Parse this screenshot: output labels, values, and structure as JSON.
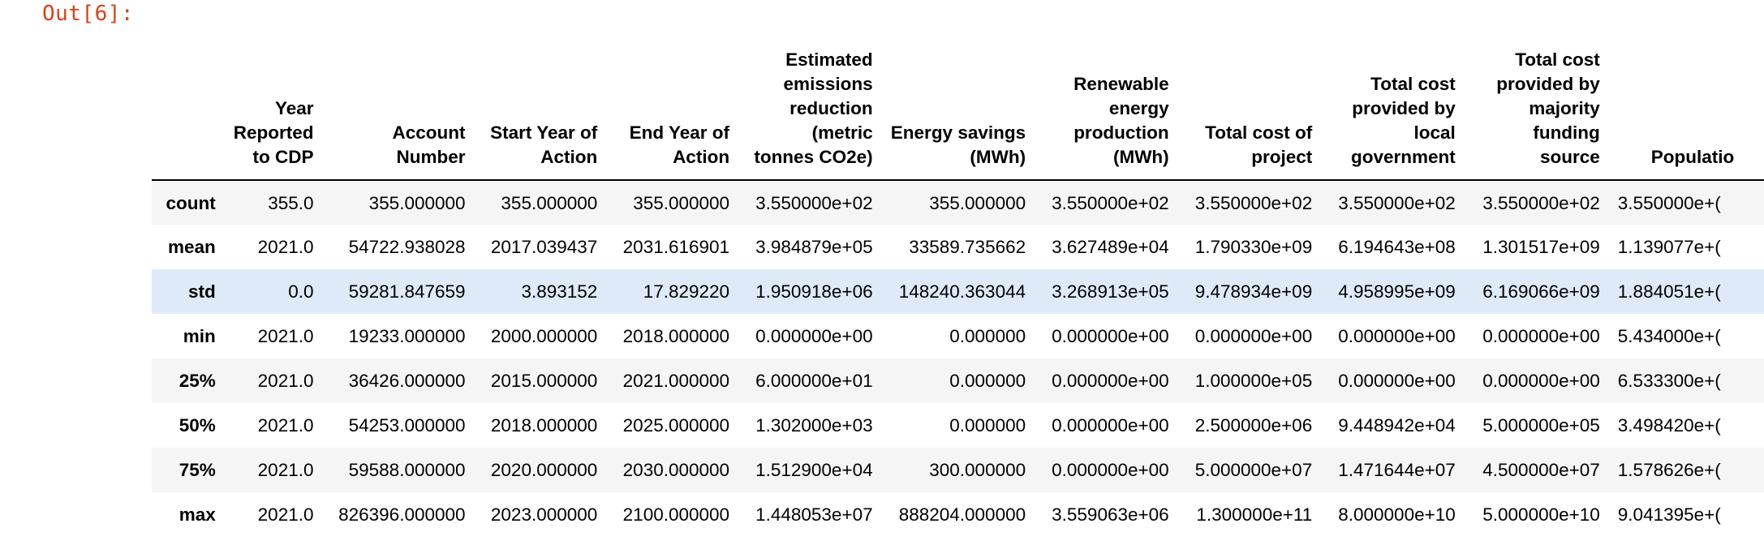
{
  "cell": {
    "prompt": "Out[6]:"
  },
  "table": {
    "columns": [
      "Year Reported to CDP",
      "Account Number",
      "Start Year of Action",
      "End Year of Action",
      "Estimated emissions reduction (metric tonnes CO2e)",
      "Energy savings (MWh)",
      "Renewable energy production (MWh)",
      "Total cost of project",
      "Total cost provided by local government",
      "Total cost provided by majority funding source",
      "Populatio"
    ],
    "rows": [
      {
        "label": "count",
        "values": [
          "355.0",
          "355.000000",
          "355.000000",
          "355.000000",
          "3.550000e+02",
          "355.000000",
          "3.550000e+02",
          "3.550000e+02",
          "3.550000e+02",
          "3.550000e+02",
          "3.550000e+("
        ]
      },
      {
        "label": "mean",
        "values": [
          "2021.0",
          "54722.938028",
          "2017.039437",
          "2031.616901",
          "3.984879e+05",
          "33589.735662",
          "3.627489e+04",
          "1.790330e+09",
          "6.194643e+08",
          "1.301517e+09",
          "1.139077e+("
        ]
      },
      {
        "label": "std",
        "values": [
          "0.0",
          "59281.847659",
          "3.893152",
          "17.829220",
          "1.950918e+06",
          "148240.363044",
          "3.268913e+05",
          "9.478934e+09",
          "4.958995e+09",
          "6.169066e+09",
          "1.884051e+("
        ]
      },
      {
        "label": "min",
        "values": [
          "2021.0",
          "19233.000000",
          "2000.000000",
          "2018.000000",
          "0.000000e+00",
          "0.000000",
          "0.000000e+00",
          "0.000000e+00",
          "0.000000e+00",
          "0.000000e+00",
          "5.434000e+("
        ]
      },
      {
        "label": "25%",
        "values": [
          "2021.0",
          "36426.000000",
          "2015.000000",
          "2021.000000",
          "6.000000e+01",
          "0.000000",
          "0.000000e+00",
          "1.000000e+05",
          "0.000000e+00",
          "0.000000e+00",
          "6.533300e+("
        ]
      },
      {
        "label": "50%",
        "values": [
          "2021.0",
          "54253.000000",
          "2018.000000",
          "2025.000000",
          "1.302000e+03",
          "0.000000",
          "0.000000e+00",
          "2.500000e+06",
          "9.448942e+04",
          "5.000000e+05",
          "3.498420e+("
        ]
      },
      {
        "label": "75%",
        "values": [
          "2021.0",
          "59588.000000",
          "2020.000000",
          "2030.000000",
          "1.512900e+04",
          "300.000000",
          "0.000000e+00",
          "5.000000e+07",
          "1.471644e+07",
          "4.500000e+07",
          "1.578626e+("
        ]
      },
      {
        "label": "max",
        "values": [
          "2021.0",
          "826396.000000",
          "2023.000000",
          "2100.000000",
          "1.448053e+07",
          "888204.000000",
          "3.559063e+06",
          "1.300000e+11",
          "8.000000e+10",
          "5.000000e+10",
          "9.041395e+("
        ]
      }
    ]
  }
}
